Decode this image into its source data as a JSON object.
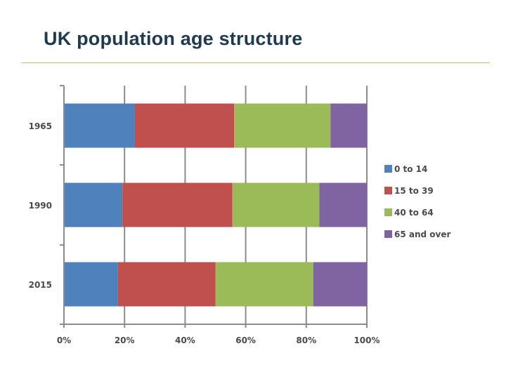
{
  "title": "UK population age structure",
  "chart_data": {
    "type": "bar",
    "orientation": "horizontal",
    "stacked": "percent",
    "categories": [
      "1965",
      "1990",
      "2015"
    ],
    "series": [
      {
        "name": "0 to 14",
        "color": "#4f81bd",
        "values": [
          23.3,
          19.3,
          17.7
        ]
      },
      {
        "name": "15 to 39",
        "color": "#c0504d",
        "values": [
          32.9,
          36.3,
          32.3
        ]
      },
      {
        "name": "40 to 64",
        "color": "#9bbb59",
        "values": [
          31.8,
          28.7,
          32.3
        ]
      },
      {
        "name": "65 and over",
        "color": "#8064a2",
        "values": [
          12.0,
          15.7,
          17.7
        ]
      }
    ],
    "xticks": [
      "0%",
      "20%",
      "40%",
      "60%",
      "80%",
      "100%"
    ],
    "xlim": [
      0,
      100
    ],
    "grid": true,
    "legend": "right"
  }
}
